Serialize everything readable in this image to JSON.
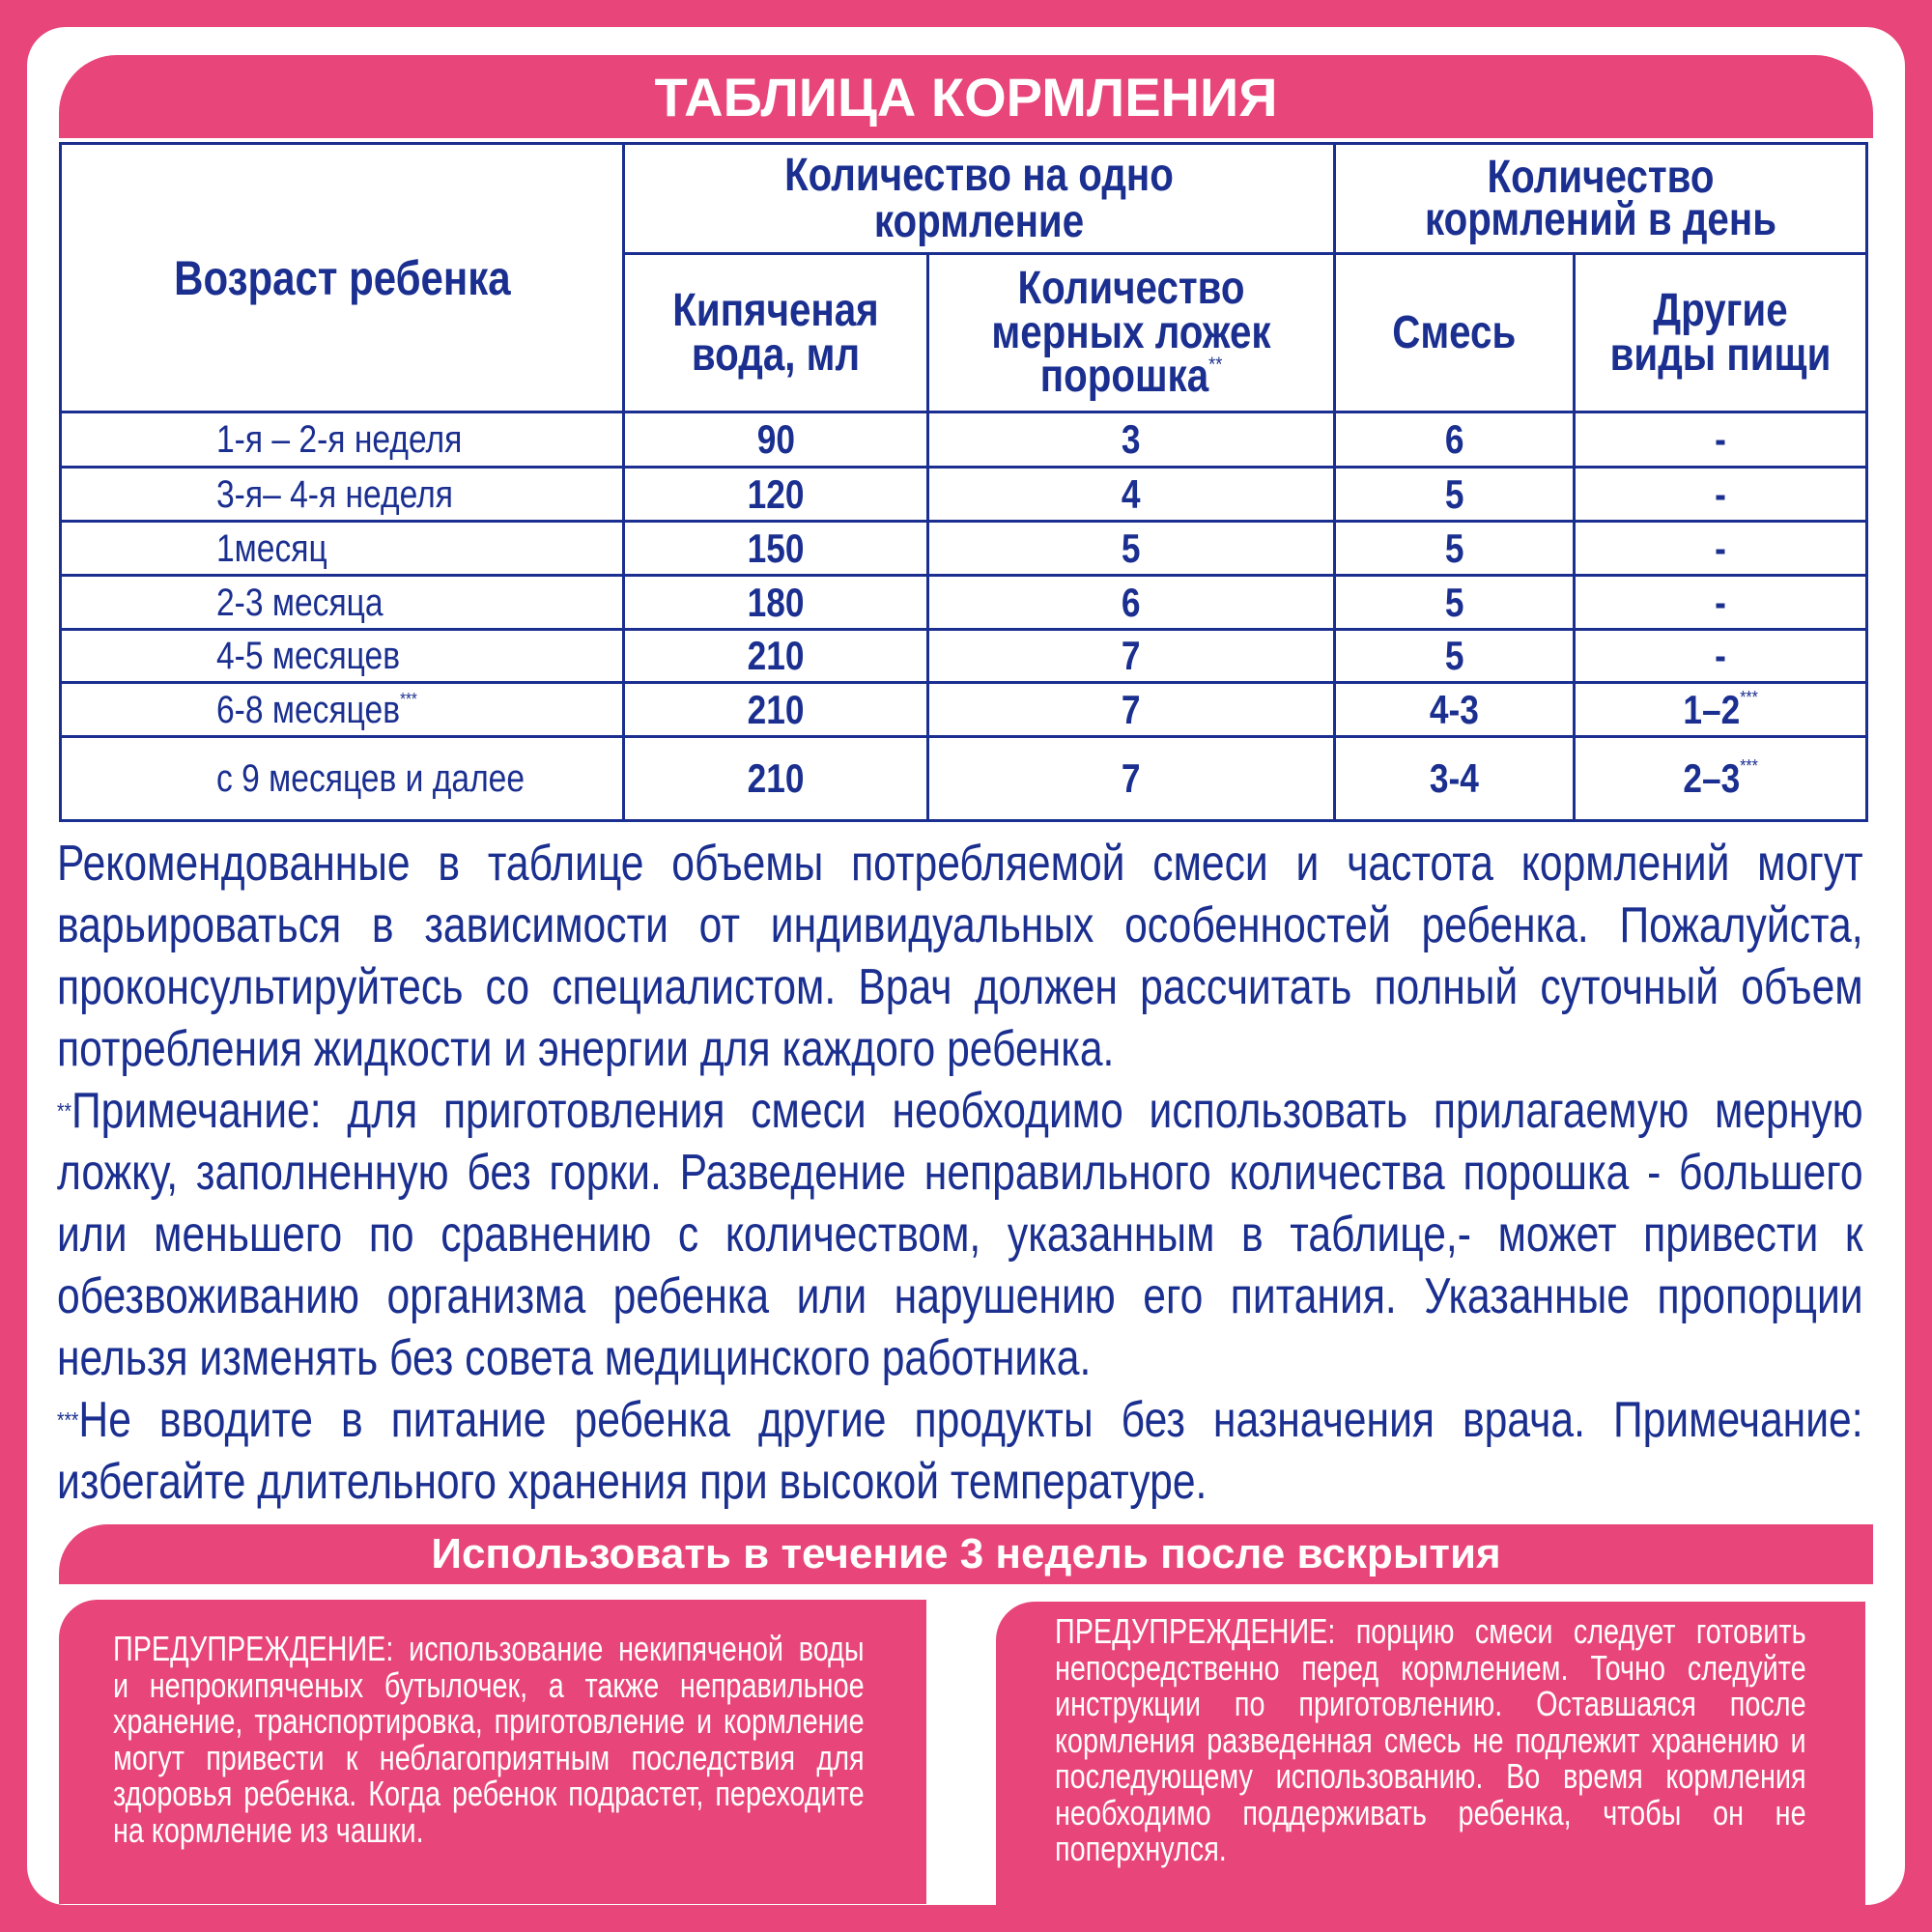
{
  "title": "ТАБЛИЦА КОРМЛЕНИЯ",
  "table": {
    "header": {
      "age": "Возраст ребенка",
      "group1": "Количество на одно кормление",
      "group2": "Количество кормлений в день",
      "sub": [
        {
          "text": "Кипяченая вода, мл"
        },
        {
          "text": "Количество мерных ложек порошка",
          "note": "**"
        },
        {
          "text": "Смесь"
        },
        {
          "text": "Другие виды пищи"
        }
      ]
    },
    "rows": [
      [
        {
          "text": "1-я – 2-я неделя"
        },
        {
          "text": 90
        },
        {
          "text": 3
        },
        {
          "text": 6
        },
        {
          "text": "-"
        }
      ],
      [
        {
          "text": "3-я– 4-я неделя"
        },
        {
          "text": 120
        },
        {
          "text": 4
        },
        {
          "text": 5
        },
        {
          "text": "-"
        }
      ],
      [
        {
          "text": "1месяц"
        },
        {
          "text": 150
        },
        {
          "text": 5
        },
        {
          "text": 5
        },
        {
          "text": "-"
        }
      ],
      [
        {
          "text": "2-3 месяца"
        },
        {
          "text": 180
        },
        {
          "text": 6
        },
        {
          "text": 5
        },
        {
          "text": "-"
        }
      ],
      [
        {
          "text": "4-5 месяцев"
        },
        {
          "text": 210
        },
        {
          "text": 7
        },
        {
          "text": 5
        },
        {
          "text": "-"
        }
      ],
      [
        {
          "text": "6-8 месяцев",
          "note": "***"
        },
        {
          "text": 210
        },
        {
          "text": 7
        },
        {
          "text": "4-3"
        },
        {
          "text": "1–2",
          "note": "***"
        }
      ],
      [
        {
          "text": "с 9 месяцев и далее"
        },
        {
          "text": 210
        },
        {
          "text": 7
        },
        {
          "text": "3-4"
        },
        {
          "text": "2–3",
          "note": "***"
        }
      ]
    ]
  },
  "notes": [
    {
      "text": "Рекомендованные в таблице объемы потребляемой смеси и частота кормлений могут варьироваться в зависимости от индивидуальных особенностей ребенка. Пожалуйста, проконсультируйтесь со специалистом. Врач должен рассчитать полный суточный объем потребления жидкости и энергии для каждого ребенка."
    },
    {
      "mark": "**",
      "text": "Примечание: для приготовления смеси необходимо использовать прилагаемую мерную ложку, заполненную без горки. Разведение неправильного количества порошка - большего или меньшего по сравнению с количеством, указанным в таблице,- может привести к обезвоживанию организма ребенка или нарушению его питания. Указанные пропорции нельзя изменять без совета медицинского работника."
    },
    {
      "mark": "***",
      "text": "Не вводите в питание ребенка другие продукты без назначения врача. Примечание: избегайте длительного хранения при высокой температуре."
    }
  ],
  "banner": "Использовать в течение 3 недель после вскрытия",
  "warnings": [
    "ПРЕДУПРЕЖДЕНИЕ: использование некипяченой воды и непрокипяченых бутылочек, а также неправильное хранение, транспортировка, приготовление и кормление могут привести к неблагоприятным последствия для здоровья ребенка. Когда ребенок подрастет, переходите на кормление из чашки.",
    "ПРЕДУПРЕЖДЕНИЕ: порцию смеси следует готовить непосредственно перед кормлением. Точно следуйте инструкции по приготовлению. Оставшаяся после кормления разведенная смесь не подлежит хранению и последующему использованию. Во время кормления необходимо поддерживать ребенка, чтобы он не поперхнулся."
  ]
}
